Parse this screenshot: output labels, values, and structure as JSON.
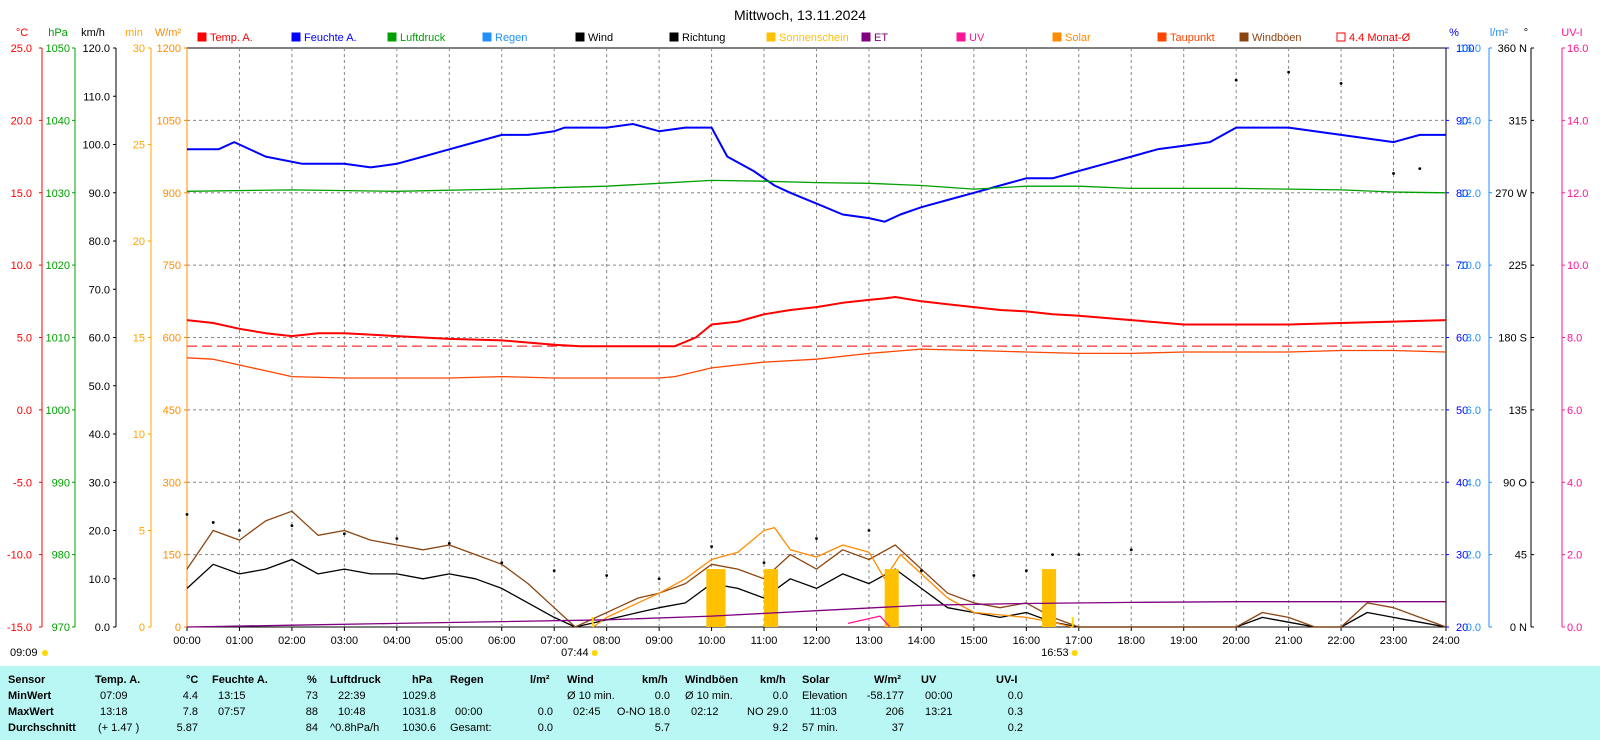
{
  "title": "Mittwoch, 13.11.2024",
  "legend": [
    {
      "label": "Temp. A.",
      "color": "#ff0000",
      "filled": true
    },
    {
      "label": "Feuchte A.",
      "color": "#0000ff",
      "filled": true
    },
    {
      "label": "Luftdruck",
      "color": "#00a000",
      "filled": true
    },
    {
      "label": "Regen",
      "color": "#2090ff",
      "filled": true
    },
    {
      "label": "Wind",
      "color": "#000000",
      "filled": true
    },
    {
      "label": "Richtung",
      "color": "#000000",
      "filled": true
    },
    {
      "label": "Sonnenschein",
      "color": "#ffc000",
      "filled": true
    },
    {
      "label": "ET",
      "color": "#800080",
      "filled": true
    },
    {
      "label": "UV",
      "color": "#ff1493",
      "filled": true
    },
    {
      "label": "Solar",
      "color": "#ff8c00",
      "filled": true
    },
    {
      "label": "Taupunkt",
      "color": "#ff4500",
      "filled": true
    },
    {
      "label": "Windböen",
      "color": "#8b4513",
      "filled": true
    },
    {
      "label": "4.4 Monat-Ø",
      "color": "#ff0000",
      "filled": false
    }
  ],
  "colors": {
    "temp": "#ff0000",
    "humidity": "#0000ff",
    "pressure": "#00a000",
    "rain": "#2090ff",
    "wind": "#000000",
    "direction": "#000000",
    "sunshine": "#ffc000",
    "et": "#800080",
    "uv": "#ff1493",
    "solar": "#ff8c00",
    "dewpoint": "#ff4500",
    "gust": "#8b4513"
  },
  "axes_left": [
    {
      "unit": "°C",
      "color": "#ff0000",
      "ticks": [
        "25.0",
        "20.0",
        "15.0",
        "10.0",
        "5.0",
        "0.0",
        "-5.0",
        "-10.0",
        "-15.0"
      ]
    },
    {
      "unit": "hPa",
      "color": "#00a000",
      "ticks": [
        "1050",
        "1040",
        "1030",
        "1020",
        "1010",
        "1000",
        "990",
        "980",
        "970"
      ]
    },
    {
      "unit": "km/h",
      "color": "#000000",
      "ticks": [
        "120.0",
        "110.0",
        "100.0",
        "90.0",
        "80.0",
        "70.0",
        "60.0",
        "50.0",
        "40.0",
        "30.0",
        "20.0",
        "10.0",
        "0.0"
      ]
    },
    {
      "unit": "min",
      "color": "#ffa500",
      "ticks": [
        "30",
        "25",
        "20",
        "15",
        "10",
        "5",
        "0"
      ]
    },
    {
      "unit": "W/m²",
      "color": "#ff8c00",
      "ticks": [
        "1200",
        "1050",
        "900",
        "750",
        "600",
        "450",
        "300",
        "150",
        "0"
      ]
    }
  ],
  "axes_right": [
    {
      "unit": "%",
      "color": "#0000ff",
      "ticks": [
        "100",
        "90",
        "80",
        "70",
        "60",
        "50",
        "40",
        "30",
        "20"
      ]
    },
    {
      "unit": "l/m²",
      "color": "#2090ff",
      "ticks": [
        "16.0",
        "14.0",
        "12.0",
        "10.0",
        "8.0",
        "6.0",
        "4.0",
        "2.0",
        "0.0"
      ]
    },
    {
      "unit": "°",
      "color": "#000000",
      "ticks": [
        "360 N",
        "315",
        "270 W",
        "225",
        "180 S",
        "135",
        "90 O",
        "45",
        "0 N"
      ]
    },
    {
      "unit": "UV-I",
      "color": "#ff1493",
      "ticks": [
        "16.0",
        "14.0",
        "12.0",
        "10.0",
        "8.0",
        "6.0",
        "4.0",
        "2.0",
        "0.0"
      ]
    }
  ],
  "x_ticks": [
    "00:00",
    "01:00",
    "02:00",
    "03:00",
    "04:00",
    "05:00",
    "06:00",
    "07:00",
    "08:00",
    "09:00",
    "10:00",
    "11:00",
    "12:00",
    "13:00",
    "14:00",
    "15:00",
    "16:00",
    "17:00",
    "18:00",
    "19:00",
    "20:00",
    "21:00",
    "22:00",
    "23:00",
    "24:00"
  ],
  "markers": {
    "prev_sunset": "09:09",
    "sunrise": "07:44",
    "sunset": "16:53"
  },
  "chart_data": {
    "type": "line",
    "x_unit": "hour of day",
    "xlim": [
      0,
      24
    ],
    "grid": true,
    "legend_position": "top",
    "series": [
      {
        "name": "Temp. A.",
        "axis": "°C",
        "x": [
          0,
          0.5,
          1,
          1.5,
          2,
          2.5,
          3,
          4,
          5,
          6,
          7,
          7.5,
          8,
          8.5,
          9,
          9.3,
          9.7,
          10,
          10.5,
          11,
          11.5,
          12,
          12.5,
          13,
          13.3,
          13.5,
          14,
          14.5,
          15,
          15.5,
          16,
          16.5,
          17,
          18,
          19,
          20,
          21,
          22,
          23,
          24
        ],
        "y": [
          6.2,
          6.0,
          5.6,
          5.3,
          5.1,
          5.3,
          5.3,
          5.1,
          4.9,
          4.8,
          4.5,
          4.4,
          4.4,
          4.4,
          4.4,
          4.4,
          5.0,
          5.9,
          6.1,
          6.6,
          6.9,
          7.1,
          7.4,
          7.6,
          7.7,
          7.8,
          7.5,
          7.3,
          7.1,
          6.9,
          6.8,
          6.6,
          6.5,
          6.2,
          5.9,
          5.9,
          5.9,
          6.0,
          6.1,
          6.2
        ]
      },
      {
        "name": "Taupunkt",
        "axis": "°C",
        "x": [
          0,
          0.5,
          1,
          1.5,
          2,
          3,
          4,
          5,
          6,
          7,
          8,
          9,
          9.3,
          10,
          11,
          12,
          13,
          14,
          15,
          16,
          17,
          18,
          19,
          20,
          21,
          22,
          23,
          24
        ],
        "y": [
          3.6,
          3.5,
          3.1,
          2.7,
          2.3,
          2.2,
          2.2,
          2.2,
          2.3,
          2.2,
          2.2,
          2.2,
          2.3,
          2.9,
          3.3,
          3.5,
          3.9,
          4.2,
          4.1,
          4.0,
          3.9,
          3.9,
          4.0,
          4.0,
          4.0,
          4.1,
          4.1,
          4.0
        ]
      },
      {
        "name": "Feuchte A.",
        "axis": "%",
        "x": [
          0,
          0.6,
          0.9,
          1.5,
          2.2,
          3,
          3.5,
          4,
          4.5,
          5,
          5.5,
          6,
          6.5,
          7,
          7.2,
          8,
          8.5,
          9,
          9.5,
          10,
          10.3,
          10.8,
          11.2,
          11.5,
          12,
          12.5,
          13,
          13.3,
          13.6,
          14,
          14.5,
          15,
          15.5,
          16,
          16.5,
          17,
          17.5,
          18,
          18.5,
          19,
          19.5,
          20,
          20.5,
          21,
          21.5,
          22,
          22.5,
          23,
          23.5,
          24
        ],
        "y": [
          86,
          86,
          87,
          85,
          84,
          84,
          83.5,
          84,
          85,
          86,
          87,
          88,
          88,
          88.5,
          89,
          89,
          89.5,
          88.5,
          89,
          89,
          85,
          83,
          81,
          80,
          78.5,
          77,
          76.5,
          76,
          77,
          78,
          79,
          80,
          81,
          82,
          82,
          83,
          84,
          85,
          86,
          86.5,
          87,
          89,
          89,
          89,
          88.5,
          88,
          87.5,
          87,
          88,
          88
        ]
      },
      {
        "name": "Luftdruck",
        "axis": "hPa",
        "x": [
          0,
          2,
          4,
          6,
          8,
          9,
          10,
          11,
          12,
          13,
          14,
          15,
          16,
          17,
          18,
          19,
          20,
          21,
          22,
          23,
          24
        ],
        "y": [
          1030.2,
          1030.4,
          1030.2,
          1030.5,
          1030.9,
          1031.3,
          1031.7,
          1031.6,
          1031.4,
          1031.3,
          1031.0,
          1030.5,
          1030.9,
          1030.9,
          1030.6,
          1030.6,
          1030.6,
          1030.5,
          1030.4,
          1030.1,
          1030.0
        ]
      },
      {
        "name": "Wind",
        "axis": "km/h",
        "x": [
          0,
          0.5,
          1,
          1.5,
          2,
          2.5,
          3,
          3.5,
          4,
          4.5,
          5,
          5.5,
          6,
          6.5,
          7,
          7.4,
          7.8,
          8.2,
          8.6,
          9,
          9.5,
          10,
          10.5,
          11,
          11.5,
          12,
          12.5,
          13,
          13.5,
          14,
          14.5,
          15,
          15.5,
          16,
          16.5,
          17,
          17.5,
          18,
          19,
          20,
          20.5,
          21,
          21.5,
          22,
          22.5,
          23,
          23.5,
          24
        ],
        "y": [
          8,
          13,
          11,
          12,
          14,
          11,
          12,
          11,
          11,
          10,
          11,
          10,
          8,
          5,
          2,
          0,
          1,
          2,
          3,
          4,
          5,
          9,
          8,
          6,
          10,
          8,
          11,
          9,
          12,
          8,
          4,
          3,
          2,
          3,
          1,
          0,
          0,
          0,
          0,
          0,
          2,
          1,
          0,
          0,
          3,
          2,
          1,
          0
        ]
      },
      {
        "name": "Windböen",
        "axis": "km/h",
        "x": [
          0,
          0.5,
          1,
          1.5,
          2,
          2.5,
          3,
          3.5,
          4,
          4.5,
          5,
          5.5,
          6,
          6.5,
          7,
          7.4,
          7.8,
          8.2,
          8.6,
          9,
          9.5,
          10,
          10.5,
          11,
          11.5,
          12,
          12.5,
          13,
          13.5,
          14,
          14.5,
          15,
          15.5,
          16,
          16.5,
          17,
          17.5,
          18,
          19,
          20,
          20.5,
          21,
          21.5,
          22,
          22.5,
          23,
          23.5,
          24
        ],
        "y": [
          12,
          20,
          18,
          22,
          24,
          19,
          20,
          18,
          17,
          16,
          17,
          15,
          13,
          9,
          4,
          0,
          2,
          4,
          6,
          7,
          9,
          13,
          12,
          10,
          15,
          12,
          16,
          14,
          17,
          12,
          7,
          5,
          4,
          5,
          2,
          0,
          0,
          0,
          0,
          0,
          3,
          2,
          0,
          0,
          5,
          4,
          2,
          0
        ]
      },
      {
        "name": "Solar",
        "axis": "W/m²",
        "x": [
          7.74,
          8,
          8.5,
          9,
          9.5,
          10,
          10.5,
          11,
          11.2,
          11.5,
          12,
          12.5,
          13,
          13.3,
          13.6,
          14,
          14.5,
          15,
          15.5,
          16,
          16.5,
          16.88
        ],
        "y": [
          0,
          20,
          45,
          70,
          100,
          140,
          155,
          200,
          206,
          160,
          145,
          170,
          155,
          100,
          150,
          110,
          60,
          30,
          25,
          20,
          10,
          0
        ]
      },
      {
        "name": "Sonnenschein",
        "axis": "min",
        "x": [
          9.9,
          10.0,
          11.0,
          13.3,
          16.3
        ],
        "y": [
          3,
          3,
          3,
          3,
          3
        ]
      },
      {
        "name": "ET",
        "axis": "l/m²",
        "x": [
          0,
          2,
          4,
          6,
          8,
          10,
          12,
          14,
          16,
          18,
          20,
          22,
          24
        ],
        "y": [
          0.0,
          0.05,
          0.1,
          0.15,
          0.2,
          0.3,
          0.45,
          0.6,
          0.65,
          0.68,
          0.7,
          0.7,
          0.7
        ]
      },
      {
        "name": "UV",
        "axis": "UV-I",
        "x": [
          12.6,
          13.21,
          13.4
        ],
        "y": [
          0.1,
          0.3,
          0.0
        ]
      },
      {
        "name": "Richtung",
        "axis": "°",
        "x": [
          0,
          0.5,
          1,
          2,
          3,
          4,
          5,
          6,
          7,
          8,
          9,
          10,
          11,
          12,
          13,
          14,
          15,
          16,
          16.5,
          17,
          18,
          20,
          21,
          22,
          23,
          23.5
        ],
        "y": [
          70,
          65,
          60,
          63,
          58,
          55,
          52,
          40,
          35,
          32,
          30,
          50,
          40,
          55,
          60,
          35,
          32,
          35,
          45,
          45,
          48,
          340,
          345,
          338,
          282,
          285
        ],
        "style": "dots"
      }
    ],
    "reference_lines": [
      {
        "name": "4.4 Monat-Ø",
        "axis": "°C",
        "value": 4.4,
        "style": "dashed"
      }
    ]
  },
  "stats": {
    "header": {
      "sensor": "Sensor",
      "temp": "Temp. A.",
      "temp_unit": "°C",
      "hum": "Feuchte A.",
      "hum_unit": "%",
      "press": "Luftdruck",
      "press_unit": "hPa",
      "rain": "Regen",
      "rain_unit": "l/m²",
      "wind": "Wind",
      "wind_unit": "km/h",
      "gust": "Windböen",
      "gust_unit": "km/h",
      "solar": "Solar",
      "solar_unit": "W/m²",
      "uv": "UV",
      "uvi": "UV-I"
    },
    "min": {
      "label": "MinWert",
      "temp_t": "07:09",
      "temp_v": "4.4",
      "hum_t": "13:15",
      "hum_v": "73",
      "press_t": "22:39",
      "press_v": "1029.8",
      "wind_t": "Ø 10 min.",
      "wind_v": "0.0",
      "gust_t": "Ø 10 min.",
      "gust_v": "0.0",
      "solar_t": "Elevation",
      "solar_v": "-58.177",
      "uv_t": "00:00",
      "uv_v": "0.0"
    },
    "max": {
      "label": "MaxWert",
      "temp_t": "13:18",
      "temp_v": "7.8",
      "hum_t": "07:57",
      "hum_v": "88",
      "press_t": "10:48",
      "press_v": "1031.8",
      "rain_t": "00:00",
      "rain_v": "0.0",
      "wind_t": "02:45",
      "wind_v": "O-NO 18.0",
      "gust_t": "02:12",
      "gust_v": "NO 29.0",
      "solar_t": "11:03",
      "solar_v": "206",
      "uv_t": "13:21",
      "uv_v": "0.3"
    },
    "avg": {
      "label": "Durchschnitt",
      "temp_t": "(+ 1.47 )",
      "temp_v": "5.87",
      "hum_v": "84",
      "press_t": "^0.8hPa/h",
      "press_v": "1030.6",
      "rain_t": "Gesamt:",
      "rain_v": "0.0",
      "wind_v": "5.7",
      "gust_v": "9.2",
      "solar_t": "57 min.",
      "solar_v": "37",
      "uv_v": "0.2"
    }
  }
}
